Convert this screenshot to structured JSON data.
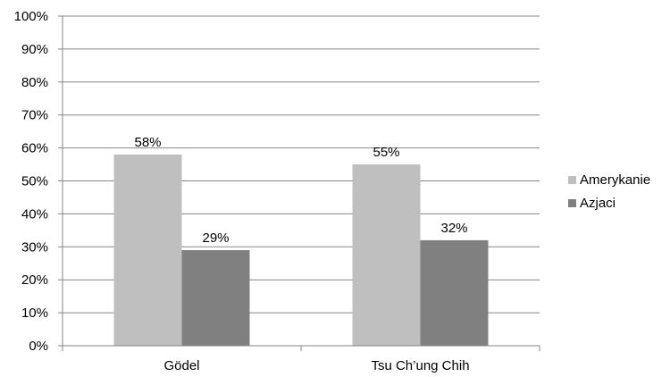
{
  "chart_data": {
    "type": "bar",
    "categories": [
      "Gödel",
      "Tsu Ch’ung Chih"
    ],
    "series": [
      {
        "name": "Amerykanie",
        "values": [
          58,
          55
        ],
        "color": "#bfbfbf"
      },
      {
        "name": "Azjaci",
        "values": [
          29,
          32
        ],
        "color": "#808080"
      }
    ],
    "data_labels": [
      [
        "58%",
        "55%"
      ],
      [
        "29%",
        "32%"
      ]
    ],
    "y_ticks": [
      "0%",
      "10%",
      "20%",
      "30%",
      "40%",
      "50%",
      "60%",
      "70%",
      "80%",
      "90%",
      "100%"
    ],
    "ylim": [
      0,
      100
    ],
    "grid": true,
    "legend_position": "right",
    "title": "",
    "xlabel": "",
    "ylabel": ""
  }
}
